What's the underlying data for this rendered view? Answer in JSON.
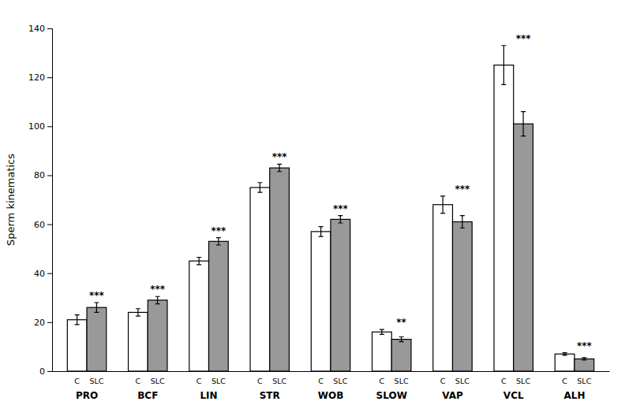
{
  "chart_data": {
    "type": "bar",
    "ylabel": "Sperm kinematics",
    "categories": [
      "PRO",
      "BCF",
      "LIN",
      "STR",
      "WOB",
      "SLOW",
      "VAP",
      "VCL",
      "ALH"
    ],
    "series": [
      {
        "name": "C",
        "color": "#ffffff",
        "values": [
          21,
          24,
          45,
          75,
          57,
          16,
          68,
          125,
          7
        ],
        "errors": [
          2.0,
          1.5,
          1.5,
          2.0,
          2.0,
          1.0,
          3.5,
          8.0,
          0.5
        ]
      },
      {
        "name": "SLC",
        "color": "#999999",
        "values": [
          26,
          29,
          53,
          83,
          62,
          13,
          61,
          101,
          5
        ],
        "errors": [
          2.0,
          1.5,
          1.5,
          1.5,
          1.5,
          1.0,
          2.5,
          5.0,
          0.5
        ]
      }
    ],
    "annotations": [
      "***",
      "***",
      "***",
      "***",
      "***",
      "**",
      "***",
      "***",
      "***"
    ],
    "ylim": [
      0,
      140
    ],
    "yticks": [
      0,
      20,
      40,
      60,
      80,
      100,
      120,
      140
    ],
    "grid": false
  }
}
